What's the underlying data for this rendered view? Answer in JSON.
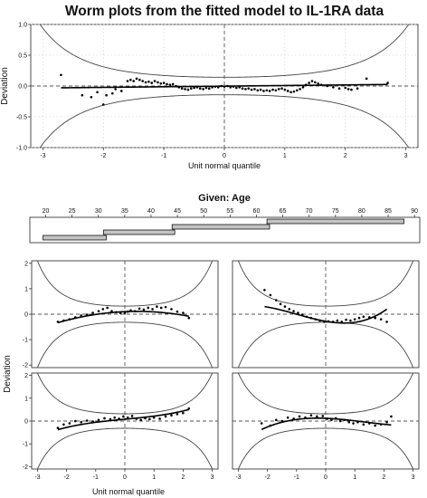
{
  "figure": {
    "title": "Worm plots from the fitted model to IL-1RA data",
    "given_label": "Given: Age"
  },
  "chart_data": [
    {
      "type": "scatter",
      "panel": "overall",
      "xlabel": "Unit normal quantile",
      "ylabel": "Deviation",
      "xlim": [
        -3.2,
        3.2
      ],
      "ylim": [
        -1.0,
        1.0
      ],
      "xticks": [
        -3,
        -2,
        -1,
        0,
        1,
        2,
        3
      ],
      "yticks": [
        -1.0,
        -0.5,
        0.0,
        0.5,
        1.0
      ],
      "grid": true,
      "points": [
        [
          -2.7,
          0.18
        ],
        [
          -2.35,
          -0.15
        ],
        [
          -2.2,
          -0.18
        ],
        [
          -2.1,
          -0.1
        ],
        [
          -2.0,
          -0.3
        ],
        [
          -1.95,
          -0.15
        ],
        [
          -1.85,
          -0.12
        ],
        [
          -1.8,
          -0.05
        ],
        [
          -1.7,
          -0.08
        ],
        [
          -1.6,
          0.08
        ],
        [
          -1.55,
          0.1
        ],
        [
          -1.5,
          0.08
        ],
        [
          -1.45,
          0.12
        ],
        [
          -1.4,
          0.1
        ],
        [
          -1.35,
          0.08
        ],
        [
          -1.3,
          0.06
        ],
        [
          -1.25,
          0.07
        ],
        [
          -1.2,
          0.05
        ],
        [
          -1.15,
          0.08
        ],
        [
          -1.1,
          0.06
        ],
        [
          -1.05,
          0.04
        ],
        [
          -1.0,
          0.05
        ],
        [
          -0.95,
          0.03
        ],
        [
          -0.9,
          0.02
        ],
        [
          -0.85,
          0.03
        ],
        [
          -0.8,
          0.0
        ],
        [
          -0.75,
          -0.02
        ],
        [
          -0.7,
          -0.04
        ],
        [
          -0.65,
          -0.05
        ],
        [
          -0.6,
          -0.06
        ],
        [
          -0.55,
          -0.04
        ],
        [
          -0.5,
          -0.03
        ],
        [
          -0.45,
          -0.02
        ],
        [
          -0.4,
          -0.04
        ],
        [
          -0.35,
          -0.05
        ],
        [
          -0.3,
          -0.03
        ],
        [
          -0.25,
          -0.04
        ],
        [
          -0.2,
          -0.02
        ],
        [
          -0.15,
          -0.01
        ],
        [
          -0.1,
          -0.02
        ],
        [
          -0.05,
          0.0
        ],
        [
          0.0,
          -0.01
        ],
        [
          0.05,
          0.0
        ],
        [
          0.1,
          -0.02
        ],
        [
          0.15,
          -0.01
        ],
        [
          0.2,
          -0.03
        ],
        [
          0.25,
          -0.02
        ],
        [
          0.3,
          -0.04
        ],
        [
          0.35,
          -0.05
        ],
        [
          0.4,
          -0.04
        ],
        [
          0.45,
          -0.06
        ],
        [
          0.5,
          -0.05
        ],
        [
          0.55,
          -0.07
        ],
        [
          0.6,
          -0.06
        ],
        [
          0.65,
          -0.08
        ],
        [
          0.7,
          -0.07
        ],
        [
          0.75,
          -0.08
        ],
        [
          0.8,
          -0.06
        ],
        [
          0.85,
          -0.07
        ],
        [
          0.9,
          -0.05
        ],
        [
          0.95,
          -0.04
        ],
        [
          1.0,
          -0.06
        ],
        [
          1.05,
          -0.08
        ],
        [
          1.1,
          -0.1
        ],
        [
          1.15,
          -0.09
        ],
        [
          1.2,
          -0.07
        ],
        [
          1.25,
          -0.05
        ],
        [
          1.3,
          -0.02
        ],
        [
          1.35,
          0.02
        ],
        [
          1.4,
          0.05
        ],
        [
          1.45,
          0.08
        ],
        [
          1.5,
          0.06
        ],
        [
          1.55,
          0.04
        ],
        [
          1.6,
          0.02
        ],
        [
          1.7,
          0.0
        ],
        [
          1.8,
          -0.02
        ],
        [
          1.9,
          -0.04
        ],
        [
          2.0,
          -0.03
        ],
        [
          2.05,
          -0.05
        ],
        [
          2.1,
          -0.06
        ],
        [
          2.2,
          -0.04
        ],
        [
          2.35,
          0.12
        ],
        [
          2.7,
          0.05
        ]
      ],
      "fit": {
        "type": "cubic",
        "coef": [
          -0.002,
          0.01,
          0.0,
          0.0
        ]
      }
    },
    {
      "type": "table",
      "panel": "given-age",
      "xlabel": "Given: Age",
      "xlim": [
        17,
        91
      ],
      "xticks": [
        20,
        25,
        30,
        35,
        40,
        45,
        50,
        55,
        60,
        65,
        70,
        75,
        80,
        85,
        90
      ],
      "intervals": [
        [
          19.5,
          31.5
        ],
        [
          31,
          44.5
        ],
        [
          44,
          62.5
        ],
        [
          62,
          88
        ]
      ]
    },
    {
      "type": "scatter",
      "panel": "age-1",
      "xlim": [
        -3.2,
        3.2
      ],
      "ylim": [
        -2.1,
        2.1
      ],
      "xticks": [
        -3,
        -2,
        -1,
        0,
        1,
        2,
        3
      ],
      "yticks": [
        -2,
        -1,
        0,
        1,
        2
      ],
      "points": [
        [
          -2.3,
          -0.3
        ],
        [
          -2.1,
          -0.25
        ],
        [
          -1.9,
          -0.2
        ],
        [
          -1.7,
          -0.12
        ],
        [
          -1.5,
          -0.05
        ],
        [
          -1.3,
          -0.02
        ],
        [
          -1.1,
          0.05
        ],
        [
          -0.9,
          0.12
        ],
        [
          -0.75,
          0.2
        ],
        [
          -0.6,
          0.25
        ],
        [
          -0.45,
          0.12
        ],
        [
          -0.3,
          0.08
        ],
        [
          -0.15,
          0.05
        ],
        [
          0.0,
          0.05
        ],
        [
          0.1,
          0.1
        ],
        [
          0.2,
          0.15
        ],
        [
          0.35,
          0.12
        ],
        [
          0.5,
          0.22
        ],
        [
          0.65,
          0.18
        ],
        [
          0.8,
          0.25
        ],
        [
          0.95,
          0.2
        ],
        [
          1.1,
          0.3
        ],
        [
          1.25,
          0.25
        ],
        [
          1.4,
          0.28
        ],
        [
          1.6,
          0.2
        ],
        [
          1.8,
          0.1
        ],
        [
          2.0,
          0.05
        ],
        [
          2.2,
          -0.15
        ]
      ],
      "fit": {
        "type": "cubic",
        "coef": [
          0.1,
          0.05,
          -0.06,
          0.0
        ]
      }
    },
    {
      "type": "scatter",
      "panel": "age-2",
      "xlim": [
        -3.2,
        3.2
      ],
      "ylim": [
        -2.1,
        2.1
      ],
      "xticks": [
        -3,
        -2,
        -1,
        0,
        1,
        2,
        3
      ],
      "yticks": [
        -2,
        -1,
        0,
        1,
        2
      ],
      "points": [
        [
          -2.1,
          0.95
        ],
        [
          -1.9,
          0.75
        ],
        [
          -1.7,
          0.55
        ],
        [
          -1.55,
          0.4
        ],
        [
          -1.4,
          0.3
        ],
        [
          -1.25,
          0.2
        ],
        [
          -1.1,
          0.12
        ],
        [
          -0.95,
          0.05
        ],
        [
          -0.8,
          -0.02
        ],
        [
          -0.65,
          -0.1
        ],
        [
          -0.5,
          -0.15
        ],
        [
          -0.35,
          -0.2
        ],
        [
          -0.2,
          -0.25
        ],
        [
          -0.05,
          -0.3
        ],
        [
          0.1,
          -0.28
        ],
        [
          0.25,
          -0.3
        ],
        [
          0.4,
          -0.25
        ],
        [
          0.55,
          -0.3
        ],
        [
          0.7,
          -0.22
        ],
        [
          0.85,
          -0.25
        ],
        [
          1.0,
          -0.2
        ],
        [
          1.15,
          -0.15
        ],
        [
          1.3,
          -0.1
        ],
        [
          1.5,
          -0.12
        ],
        [
          1.7,
          -0.15
        ],
        [
          1.9,
          -0.2
        ],
        [
          2.1,
          -0.3
        ]
      ],
      "fit": {
        "type": "cubic",
        "coef": [
          -0.28,
          -0.2,
          0.12,
          0.04
        ]
      }
    },
    {
      "type": "scatter",
      "panel": "age-3",
      "xlim": [
        -3.2,
        3.2
      ],
      "ylim": [
        -2.1,
        2.1
      ],
      "xticks": [
        -3,
        -2,
        -1,
        0,
        1,
        2,
        3
      ],
      "yticks": [
        -2,
        -1,
        0,
        1,
        2
      ],
      "points": [
        [
          -2.3,
          -0.3
        ],
        [
          -2.1,
          -0.15
        ],
        [
          -1.9,
          -0.1
        ],
        [
          -1.7,
          0.0
        ],
        [
          -1.5,
          -0.05
        ],
        [
          -1.3,
          0.02
        ],
        [
          -1.1,
          -0.02
        ],
        [
          -0.9,
          0.05
        ],
        [
          -0.7,
          0.12
        ],
        [
          -0.5,
          0.08
        ],
        [
          -0.35,
          0.15
        ],
        [
          -0.2,
          0.1
        ],
        [
          -0.05,
          0.2
        ],
        [
          0.1,
          0.15
        ],
        [
          0.25,
          0.22
        ],
        [
          0.4,
          0.1
        ],
        [
          0.55,
          0.05
        ],
        [
          0.7,
          0.12
        ],
        [
          0.85,
          0.08
        ],
        [
          1.0,
          0.15
        ],
        [
          1.2,
          0.1
        ],
        [
          1.4,
          0.2
        ],
        [
          1.6,
          0.25
        ],
        [
          1.8,
          0.3
        ],
        [
          2.0,
          0.35
        ],
        [
          2.2,
          0.55
        ]
      ],
      "fit": {
        "type": "cubic",
        "coef": [
          0.08,
          0.12,
          0.0,
          0.015
        ]
      }
    },
    {
      "type": "scatter",
      "panel": "age-4",
      "xlim": [
        -3.2,
        3.2
      ],
      "ylim": [
        -2.1,
        2.1
      ],
      "xticks": [
        -3,
        -2,
        -1,
        0,
        1,
        2,
        3
      ],
      "yticks": [
        -2,
        -1,
        0,
        1,
        2
      ],
      "points": [
        [
          -2.2,
          -0.1
        ],
        [
          -1.9,
          -0.2
        ],
        [
          -1.7,
          0.05
        ],
        [
          -1.5,
          0.0
        ],
        [
          -1.3,
          0.15
        ],
        [
          -1.1,
          0.1
        ],
        [
          -0.9,
          0.2
        ],
        [
          -0.7,
          0.15
        ],
        [
          -0.5,
          0.25
        ],
        [
          -0.3,
          0.2
        ],
        [
          -0.1,
          0.22
        ],
        [
          0.05,
          0.1
        ],
        [
          0.2,
          0.05
        ],
        [
          0.35,
          0.12
        ],
        [
          0.5,
          0.0
        ],
        [
          0.65,
          0.05
        ],
        [
          0.8,
          -0.05
        ],
        [
          0.95,
          -0.1
        ],
        [
          1.1,
          -0.05
        ],
        [
          1.3,
          -0.15
        ],
        [
          1.5,
          -0.1
        ],
        [
          1.7,
          -0.2
        ],
        [
          1.9,
          -0.15
        ],
        [
          2.1,
          -0.05
        ],
        [
          2.25,
          0.2
        ]
      ],
      "fit": {
        "type": "cubic",
        "coef": [
          0.12,
          -0.05,
          -0.08,
          0.02
        ]
      }
    }
  ],
  "panels_labels": {
    "xlabel": "Unit normal quantile",
    "ylabel": "Deviation"
  }
}
